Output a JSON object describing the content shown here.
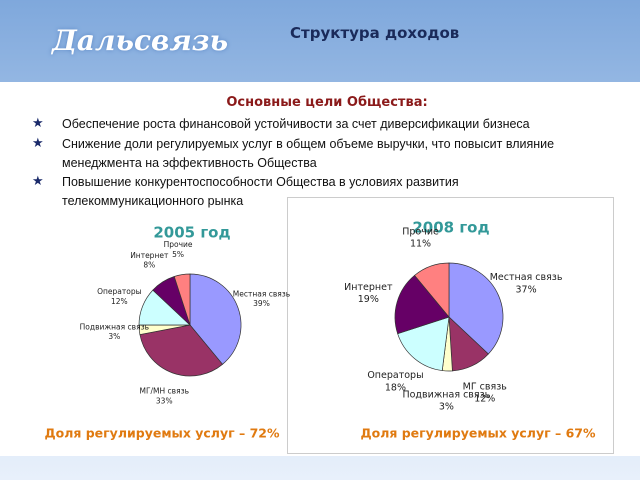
{
  "header": {
    "logo": "Дальсвязь",
    "title": "Структура доходов"
  },
  "goals": {
    "heading": "Основные цели Общества:",
    "items": [
      "Обеспечение роста финансовой устойчивости за счет диверсификации бизнеса",
      "Снижение доли регулируемых услуг в общем объеме выручки, что повысит влияние менеджмента на эффективность Общества",
      "Повышение конкурентоспособности Общества в условиях развития телекоммуникационного рынка"
    ]
  },
  "chart_data": [
    {
      "type": "pie",
      "title": "2005 год",
      "categories": [
        "Местная связь",
        "МГ/МН связь",
        "Подвижная связь",
        "Операторы",
        "Интернет",
        "Прочие"
      ],
      "values": [
        39,
        33,
        3,
        12,
        8,
        5
      ],
      "value_labels": [
        "39%",
        "33%",
        "3%",
        "12%",
        "8%",
        "5%"
      ],
      "colors": [
        "#9999ff",
        "#993366",
        "#ffffcc",
        "#ccffff",
        "#660066",
        "#ff8080"
      ],
      "annotation": "Доля регулируемых услуг – 72%"
    },
    {
      "type": "pie",
      "title": "2008 год",
      "categories": [
        "Местная связь",
        "МГ связь",
        "Подвижная связь",
        "Операторы",
        "Интернет",
        "Прочие"
      ],
      "values": [
        37,
        12,
        3,
        18,
        19,
        11
      ],
      "value_labels": [
        "37%",
        "12%",
        "3%",
        "18%",
        "19%",
        "11%"
      ],
      "colors": [
        "#9999ff",
        "#993366",
        "#ffffcc",
        "#ccffff",
        "#660066",
        "#ff8080"
      ],
      "annotation": "Доля регулируемых услуг – 67%"
    }
  ]
}
